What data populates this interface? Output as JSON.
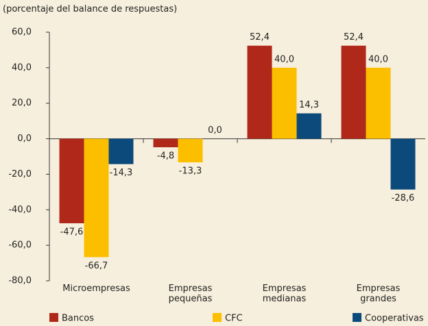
{
  "chart_data": {
    "type": "bar",
    "subtitle": "(porcentaje del balance de respuestas)",
    "categories": [
      "Microempresas",
      "Empresas pequeñas",
      "Empresas medianas",
      "Empresas grandes"
    ],
    "series": [
      {
        "name": "Bancos",
        "color": "#b0281a",
        "values": [
          -47.6,
          -4.8,
          52.4,
          52.4
        ],
        "value_labels": [
          "-47,6",
          "-4,8",
          "52,4",
          "52,4"
        ]
      },
      {
        "name": "CFC",
        "color": "#fcbf00",
        "values": [
          -66.7,
          -13.3,
          40.0,
          40.0
        ],
        "value_labels": [
          "-66,7",
          "-13,3",
          "40,0",
          "40,0"
        ]
      },
      {
        "name": "Cooperativas",
        "color": "#0b4a7b",
        "values": [
          -14.3,
          0.0,
          14.3,
          -28.6
        ],
        "value_labels": [
          "-14,3",
          "0,0",
          "14,3",
          "-28,6"
        ]
      }
    ],
    "ylim": [
      -80,
      60
    ],
    "yticks": [
      {
        "value": -80,
        "label": "-80,0"
      },
      {
        "value": -60,
        "label": "-60,0"
      },
      {
        "value": -40,
        "label": "-40,0"
      },
      {
        "value": -20,
        "label": "-20,0"
      },
      {
        "value": 0,
        "label": "0,0"
      },
      {
        "value": 20,
        "label": "20,0"
      },
      {
        "value": 40,
        "label": "40,0"
      },
      {
        "value": 60,
        "label": "60,0"
      }
    ],
    "grid": false,
    "legend": "bottom"
  }
}
